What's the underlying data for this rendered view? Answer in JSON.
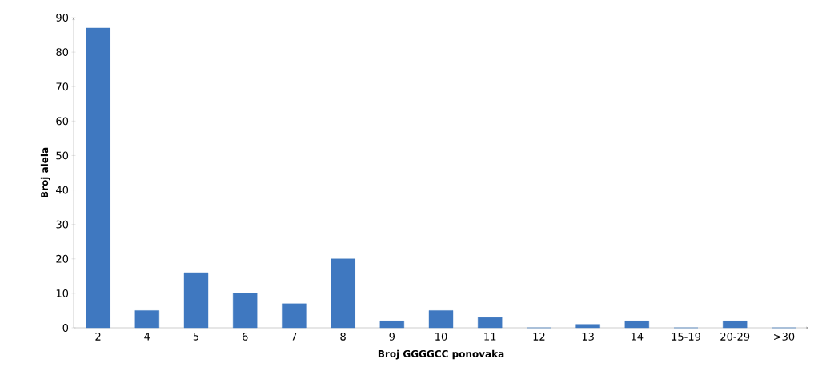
{
  "chart_data": {
    "type": "bar",
    "xlabel": "Broj GGGGCC ponovaka",
    "ylabel": "Broj alela",
    "categories": [
      "2",
      "4",
      "5",
      "6",
      "7",
      "8",
      "9",
      "10",
      "11",
      "12",
      "13",
      "14",
      "15-19",
      "20-29",
      ">30"
    ],
    "values": [
      87,
      5,
      16,
      10,
      7,
      20,
      2,
      5,
      3,
      0,
      1,
      2,
      0,
      2,
      0
    ],
    "color": "#3f78c0",
    "ylim": [
      0,
      90
    ],
    "yticks": [
      0,
      10,
      20,
      30,
      40,
      50,
      60,
      70,
      80,
      90
    ],
    "grid": false
  }
}
